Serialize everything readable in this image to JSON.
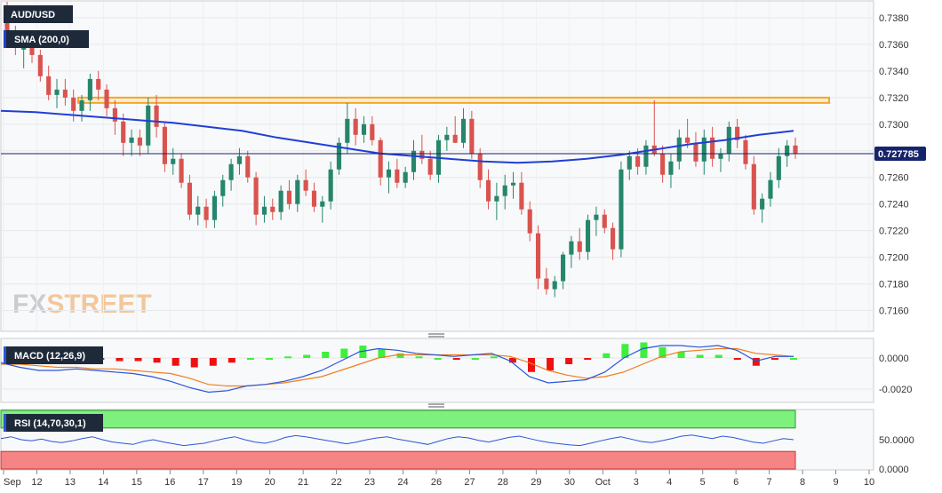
{
  "colors": {
    "up": "#26866b",
    "down": "#d9534f",
    "sma": "#1f3fd6",
    "resistance": "#f5a623",
    "macd_line": "#2b55d9",
    "signal_line": "#f07d1a",
    "hist_pos": "#3cf03c",
    "hist_neg": "#ee1111",
    "rsi_line": "#2b55d9",
    "rsi_ob": "#7ef07e",
    "rsi_os": "#f58484",
    "price_tag": "#15246b",
    "label_bg": "#1e2a3a"
  },
  "watermark": {
    "fx": "FX",
    "street": "STREET"
  },
  "labels": {
    "symbol": "AUD/USD",
    "sma": "SMA (200,0)",
    "macd": "MACD (12,26,9)",
    "rsi": "RSI (14,70,30,1)"
  },
  "chart_data": [
    {
      "type": "candlestick",
      "title": "AUD/USD",
      "x_labels": [
        "Sep",
        "12",
        "13",
        "14",
        "15",
        "16",
        "17",
        "19",
        "20",
        "21",
        "22",
        "23",
        "24",
        "26",
        "27",
        "28",
        "29",
        "30",
        "Oct",
        "3",
        "4",
        "5",
        "6",
        "7",
        "8",
        "9",
        "10"
      ],
      "ylim": [
        0.7145,
        0.7392
      ],
      "y_ticks": [
        "0.7160",
        "0.7180",
        "0.7200",
        "0.7220",
        "0.7240",
        "0.7260",
        "0.7280",
        "0.7300",
        "0.7320",
        "0.7340",
        "0.7360",
        "0.7380"
      ],
      "current_price": "0.727785",
      "current_value": 0.727785,
      "resistance_zone": [
        0.7316,
        0.732
      ],
      "sma_200": [
        0.731,
        0.7309,
        0.7307,
        0.7305,
        0.7303,
        0.7301,
        0.7298,
        0.7295,
        0.729,
        0.7286,
        0.7282,
        0.7278,
        0.7276,
        0.7274,
        0.7272,
        0.7271,
        0.7272,
        0.7274,
        0.7277,
        0.7281,
        0.7285,
        0.7288,
        0.7292,
        0.7295
      ],
      "candles": [
        [
          0.7382,
          0.7392,
          0.7358,
          0.737
        ],
        [
          0.737,
          0.7374,
          0.7352,
          0.7358
        ],
        [
          0.7356,
          0.7366,
          0.7342,
          0.736
        ],
        [
          0.736,
          0.7368,
          0.7346,
          0.7352
        ],
        [
          0.7352,
          0.7356,
          0.7332,
          0.7336
        ],
        [
          0.7336,
          0.7344,
          0.7318,
          0.7322
        ],
        [
          0.7322,
          0.7334,
          0.7312,
          0.7326
        ],
        [
          0.7326,
          0.7334,
          0.7314,
          0.732
        ],
        [
          0.732,
          0.7326,
          0.7302,
          0.731
        ],
        [
          0.731,
          0.7322,
          0.7302,
          0.7318
        ],
        [
          0.7318,
          0.7338,
          0.731,
          0.7334
        ],
        [
          0.7334,
          0.734,
          0.7318,
          0.7326
        ],
        [
          0.7326,
          0.733,
          0.7306,
          0.7312
        ],
        [
          0.7312,
          0.7318,
          0.7292,
          0.7302
        ],
        [
          0.7302,
          0.7308,
          0.7276,
          0.7286
        ],
        [
          0.7286,
          0.7296,
          0.7276,
          0.729
        ],
        [
          0.729,
          0.7296,
          0.7276,
          0.7284
        ],
        [
          0.7284,
          0.732,
          0.7278,
          0.7314
        ],
        [
          0.7314,
          0.7322,
          0.729,
          0.7298
        ],
        [
          0.7298,
          0.7302,
          0.7264,
          0.727
        ],
        [
          0.727,
          0.7282,
          0.7262,
          0.7274
        ],
        [
          0.7274,
          0.7278,
          0.7252,
          0.7256
        ],
        [
          0.7256,
          0.7262,
          0.7228,
          0.7232
        ],
        [
          0.7232,
          0.7246,
          0.7224,
          0.7238
        ],
        [
          0.7238,
          0.7244,
          0.7222,
          0.7228
        ],
        [
          0.7228,
          0.725,
          0.7222,
          0.7246
        ],
        [
          0.7246,
          0.7262,
          0.7238,
          0.7258
        ],
        [
          0.7258,
          0.7274,
          0.725,
          0.727
        ],
        [
          0.727,
          0.7282,
          0.7262,
          0.7276
        ],
        [
          0.7276,
          0.728,
          0.7256,
          0.726
        ],
        [
          0.726,
          0.7264,
          0.7224,
          0.7232
        ],
        [
          0.7232,
          0.7246,
          0.7226,
          0.7238
        ],
        [
          0.7238,
          0.7244,
          0.7228,
          0.7234
        ],
        [
          0.7234,
          0.7254,
          0.7228,
          0.725
        ],
        [
          0.725,
          0.7258,
          0.7236,
          0.724
        ],
        [
          0.724,
          0.7262,
          0.7234,
          0.7258
        ],
        [
          0.7258,
          0.7266,
          0.7246,
          0.725
        ],
        [
          0.725,
          0.7256,
          0.7234,
          0.7238
        ],
        [
          0.7238,
          0.7246,
          0.7226,
          0.7242
        ],
        [
          0.7242,
          0.7272,
          0.7236,
          0.7266
        ],
        [
          0.7266,
          0.729,
          0.7262,
          0.7286
        ],
        [
          0.7286,
          0.7316,
          0.7278,
          0.7304
        ],
        [
          0.7304,
          0.7312,
          0.7284,
          0.7292
        ],
        [
          0.7292,
          0.7306,
          0.7286,
          0.73
        ],
        [
          0.73,
          0.7306,
          0.7284,
          0.7288
        ],
        [
          0.7288,
          0.729,
          0.7254,
          0.726
        ],
        [
          0.726,
          0.7272,
          0.7248,
          0.7266
        ],
        [
          0.7266,
          0.7274,
          0.7252,
          0.7256
        ],
        [
          0.7256,
          0.7268,
          0.7252,
          0.7264
        ],
        [
          0.7264,
          0.7288,
          0.7258,
          0.728
        ],
        [
          0.728,
          0.7292,
          0.727,
          0.7274
        ],
        [
          0.7274,
          0.728,
          0.7258,
          0.7262
        ],
        [
          0.7262,
          0.7292,
          0.7256,
          0.7288
        ],
        [
          0.7288,
          0.7298,
          0.728,
          0.7292
        ],
        [
          0.7292,
          0.7306,
          0.7286,
          0.7286
        ],
        [
          0.7286,
          0.7312,
          0.7282,
          0.7304
        ],
        [
          0.7304,
          0.731,
          0.7274,
          0.7278
        ],
        [
          0.7278,
          0.7282,
          0.7252,
          0.7258
        ],
        [
          0.7258,
          0.7266,
          0.7236,
          0.7242
        ],
        [
          0.7242,
          0.7256,
          0.7228,
          0.7246
        ],
        [
          0.7246,
          0.7262,
          0.7236,
          0.7254
        ],
        [
          0.7254,
          0.7264,
          0.7244,
          0.7256
        ],
        [
          0.7256,
          0.7264,
          0.7232,
          0.7236
        ],
        [
          0.7236,
          0.7242,
          0.7212,
          0.7218
        ],
        [
          0.7218,
          0.7224,
          0.7176,
          0.7184
        ],
        [
          0.7184,
          0.7192,
          0.7172,
          0.7176
        ],
        [
          0.7176,
          0.7186,
          0.717,
          0.7182
        ],
        [
          0.7182,
          0.7204,
          0.7176,
          0.7202
        ],
        [
          0.7202,
          0.7216,
          0.7192,
          0.7212
        ],
        [
          0.7212,
          0.7222,
          0.7198,
          0.7204
        ],
        [
          0.7204,
          0.7232,
          0.7198,
          0.7228
        ],
        [
          0.7228,
          0.7238,
          0.7216,
          0.7232
        ],
        [
          0.7232,
          0.7236,
          0.7218,
          0.7222
        ],
        [
          0.7222,
          0.7226,
          0.7198,
          0.7206
        ],
        [
          0.7206,
          0.7272,
          0.72,
          0.7266
        ],
        [
          0.7266,
          0.728,
          0.7258,
          0.7276
        ],
        [
          0.7276,
          0.7282,
          0.7262,
          0.7268
        ],
        [
          0.7268,
          0.7288,
          0.7262,
          0.7284
        ],
        [
          0.7284,
          0.7318,
          0.7276,
          0.7278
        ],
        [
          0.7278,
          0.7284,
          0.7256,
          0.7262
        ],
        [
          0.7262,
          0.7278,
          0.7252,
          0.7272
        ],
        [
          0.7272,
          0.7296,
          0.7266,
          0.729
        ],
        [
          0.729,
          0.7304,
          0.7282,
          0.7286
        ],
        [
          0.7286,
          0.7294,
          0.7268,
          0.7272
        ],
        [
          0.7272,
          0.7296,
          0.7262,
          0.729
        ],
        [
          0.729,
          0.7298,
          0.7268,
          0.7274
        ],
        [
          0.7274,
          0.7282,
          0.7264,
          0.7278
        ],
        [
          0.7278,
          0.7302,
          0.7272,
          0.7298
        ],
        [
          0.7298,
          0.7304,
          0.7282,
          0.7288
        ],
        [
          0.7288,
          0.7292,
          0.7266,
          0.727
        ],
        [
          0.727,
          0.7276,
          0.7232,
          0.7236
        ],
        [
          0.7236,
          0.7248,
          0.7226,
          0.7244
        ],
        [
          0.7244,
          0.7264,
          0.7238,
          0.7258
        ],
        [
          0.7258,
          0.7282,
          0.7252,
          0.7276
        ],
        [
          0.7276,
          0.7288,
          0.7268,
          0.7284
        ],
        [
          0.7284,
          0.729,
          0.7274,
          0.7278
        ]
      ]
    },
    {
      "type": "macd",
      "title": "MACD (12,26,9)",
      "ylim": [
        -0.0028,
        0.0012
      ],
      "y_ticks": [
        "0.0000",
        "-0.0020"
      ],
      "macd": [
        -0.0003,
        -0.0006,
        -0.0008,
        -0.0008,
        -0.0007,
        -0.0008,
        -0.0009,
        -0.001,
        -0.0012,
        -0.0015,
        -0.0019,
        -0.0022,
        -0.0021,
        -0.0018,
        -0.0017,
        -0.0015,
        -0.0012,
        -0.0008,
        -0.0002,
        0.0004,
        0.0006,
        0.0005,
        0.0003,
        0.0002,
        0.0001,
        0.0002,
        0.0003,
        -0.0002,
        -0.0012,
        -0.0016,
        -0.0015,
        -0.0014,
        -0.0009,
        0.0,
        0.0006,
        0.0008,
        0.0008,
        0.0007,
        0.0008,
        0.0005,
        -0.0002,
        0.0001,
        0.0001
      ],
      "signal": [
        -0.0004,
        -0.0004,
        -0.0005,
        -0.0006,
        -0.0006,
        -0.0007,
        -0.0007,
        -0.0008,
        -0.0009,
        -0.001,
        -0.0013,
        -0.0017,
        -0.0018,
        -0.0018,
        -0.0017,
        -0.0016,
        -0.0014,
        -0.0012,
        -0.0008,
        -0.0004,
        0.0,
        0.0002,
        0.0002,
        0.0002,
        0.0002,
        0.0002,
        0.0002,
        0.0001,
        -0.0003,
        -0.0008,
        -0.0011,
        -0.0013,
        -0.0012,
        -0.0009,
        -0.0004,
        0.0001,
        0.0004,
        0.0005,
        0.0006,
        0.0006,
        0.0003,
        0.0002,
        0.0001
      ],
      "histogram": [
        0.0001,
        -0.0001,
        -0.0002,
        -0.0002,
        -0.0001,
        -0.0001,
        -0.0002,
        -0.0002,
        -0.0003,
        -0.0005,
        -0.0006,
        -0.0005,
        -0.0003,
        0.0,
        0.0,
        0.0001,
        0.0002,
        0.0004,
        0.0006,
        0.0008,
        0.0006,
        0.0003,
        0.0001,
        0.0,
        -0.0001,
        0.0,
        0.0001,
        -0.0003,
        -0.0009,
        -0.0008,
        -0.0004,
        -0.0001,
        0.0003,
        0.0009,
        0.001,
        0.0007,
        0.0004,
        0.0002,
        0.0002,
        -0.0001,
        -0.0005,
        -0.0001,
        0.0
      ]
    },
    {
      "type": "rsi",
      "title": "RSI (14,70,30,1)",
      "ylim": [
        0,
        100
      ],
      "y_ticks": [
        "50.0000",
        "0.0000"
      ],
      "overbought": 70,
      "oversold": 30,
      "values": [
        52,
        55,
        50,
        48,
        51,
        47,
        45,
        48,
        52,
        55,
        50,
        46,
        44,
        42,
        47,
        50,
        46,
        43,
        40,
        42,
        44,
        48,
        52,
        55,
        50,
        46,
        44,
        48,
        54,
        57,
        55,
        52,
        49,
        46,
        43,
        46,
        50,
        53,
        55,
        51,
        48,
        45,
        42,
        47,
        52,
        55,
        53,
        49,
        46,
        50,
        54,
        56,
        52,
        48,
        45,
        43,
        41,
        40,
        44,
        48,
        52,
        55,
        51,
        47,
        45,
        48,
        52,
        56,
        58,
        55,
        52,
        56,
        54,
        50,
        46,
        44,
        48,
        52,
        50
      ]
    }
  ]
}
